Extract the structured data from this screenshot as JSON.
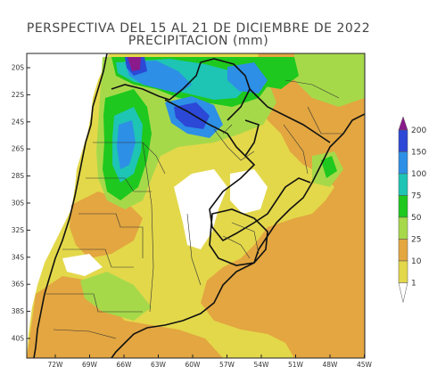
{
  "title": {
    "line1": "PERSPECTIVA DEL 15 AL 21 DE DICIEMBRE DE 2022",
    "line2": "PRECIPITACION (mm)"
  },
  "map": {
    "lat_ticks": [
      "20S",
      "22S",
      "24S",
      "26S",
      "28S",
      "30S",
      "32S",
      "34S",
      "36S",
      "38S",
      "40S"
    ],
    "lon_ticks": [
      "72W",
      "69W",
      "66W",
      "63W",
      "60W",
      "57W",
      "54W",
      "51W",
      "48W",
      "45W"
    ]
  },
  "legend": {
    "levels": [
      {
        "label": "200",
        "color": "#8b1a8b"
      },
      {
        "label": "150",
        "color": "#2c48d6"
      },
      {
        "label": "100",
        "color": "#2d8fe6"
      },
      {
        "label": "75",
        "color": "#1ec4b4"
      },
      {
        "label": "50",
        "color": "#1ec81e"
      },
      {
        "label": "25",
        "color": "#a6d94a"
      },
      {
        "label": "10",
        "color": "#e3a640"
      },
      {
        "label": "1",
        "color": "#e3d84a"
      }
    ]
  },
  "colors": {
    "dry": "#ffffff",
    "light": "#e3d84a",
    "moderate": "#e3a640",
    "ocean": "#e3a640"
  }
}
